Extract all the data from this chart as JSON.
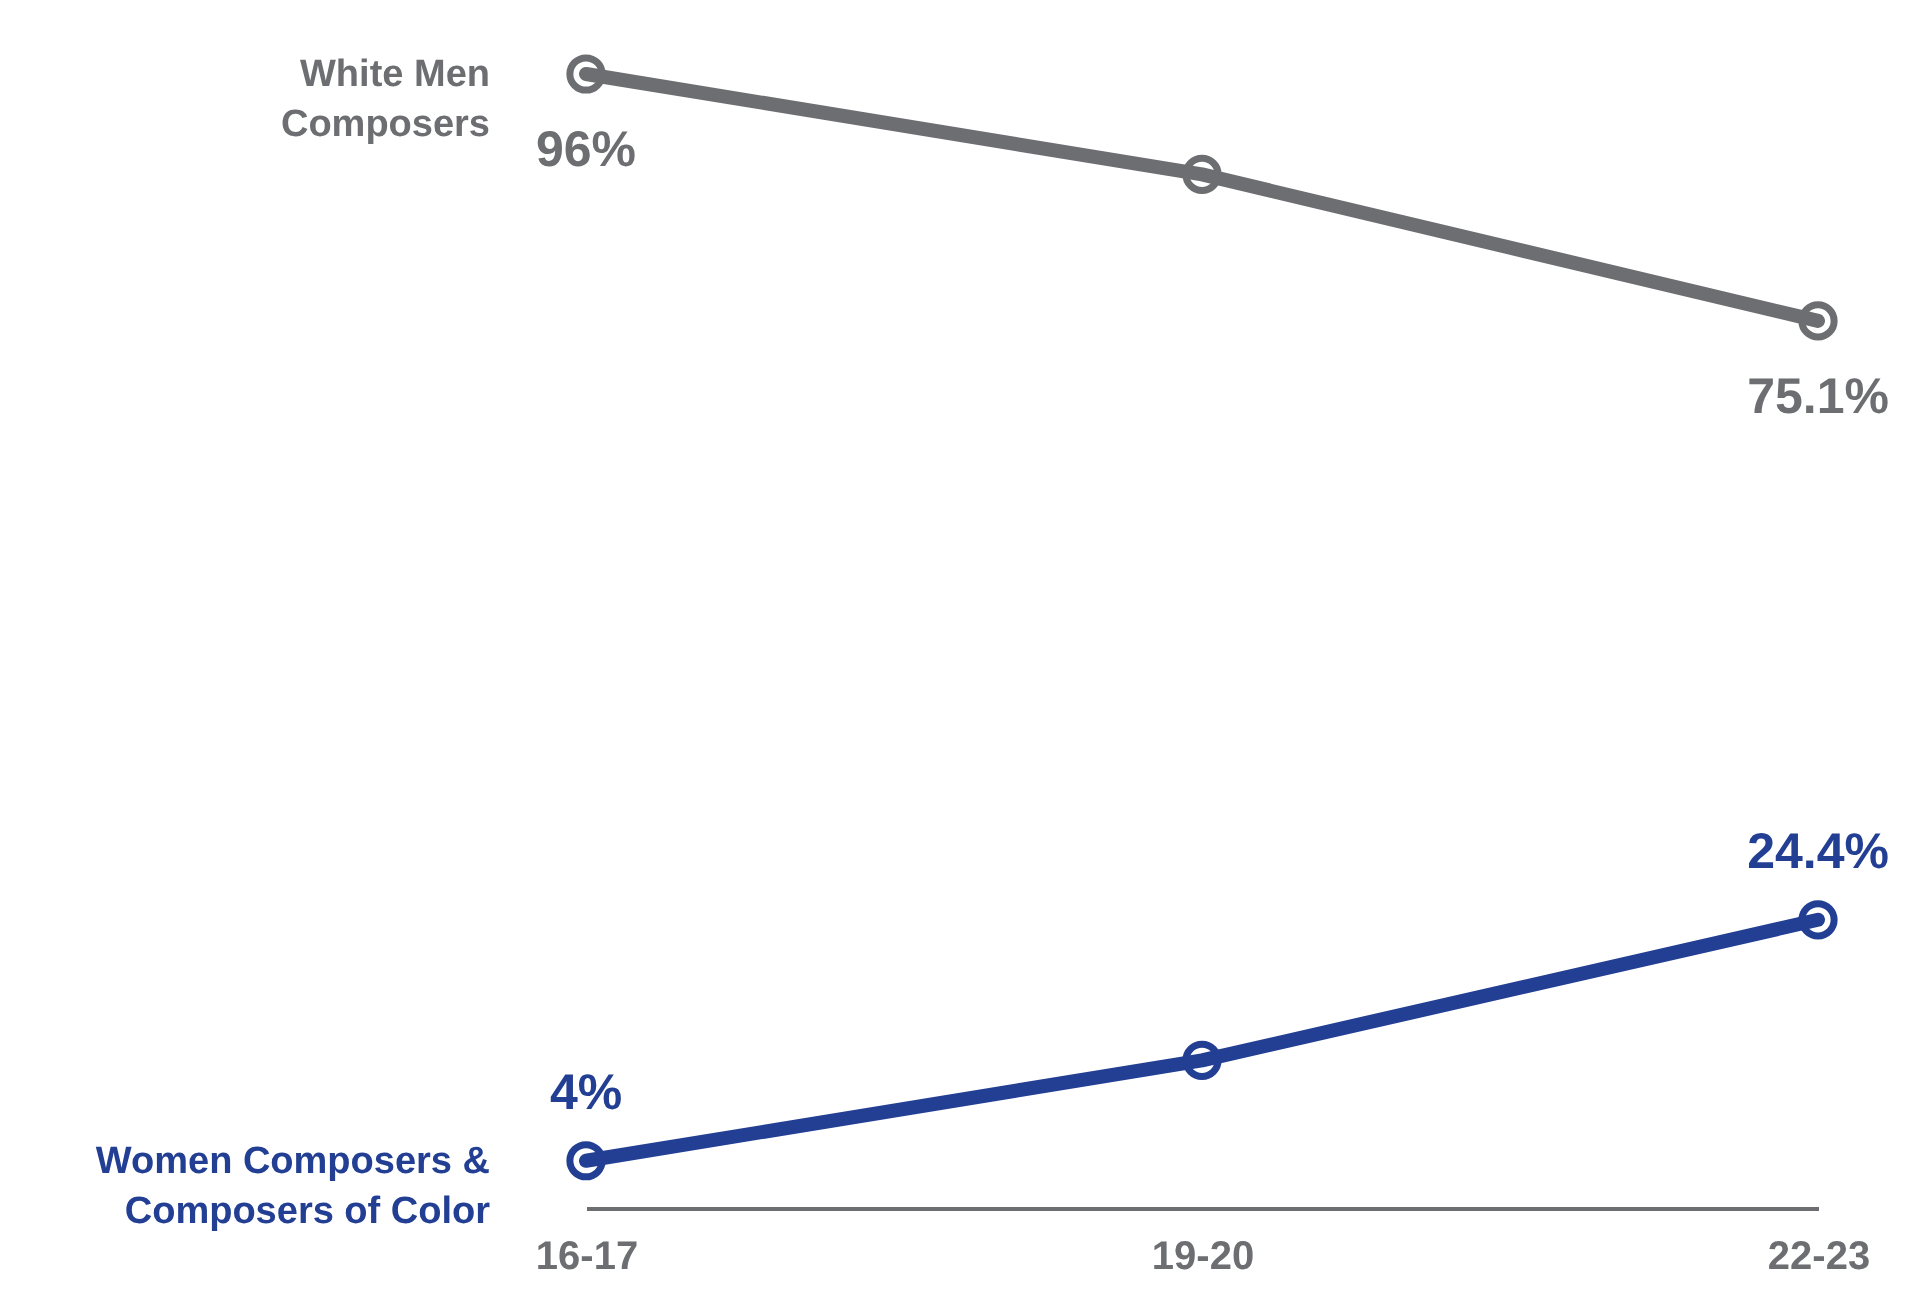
{
  "chart_data": {
    "type": "line",
    "categories": [
      "16-17",
      "19-20",
      "22-23"
    ],
    "marker": "circle",
    "line_style": "solid",
    "series": [
      {
        "name": "White Men Composers",
        "color": "#6d6e71",
        "values": [
          96,
          87.5,
          75.1
        ],
        "value_labels": [
          "96%",
          null,
          "75.1%"
        ]
      },
      {
        "name": "Women Composers & Composers of Color",
        "color": "#233f94",
        "values": [
          4,
          12.5,
          24.4
        ],
        "value_labels": [
          "4%",
          null,
          "24.4%"
        ]
      }
    ]
  }
}
